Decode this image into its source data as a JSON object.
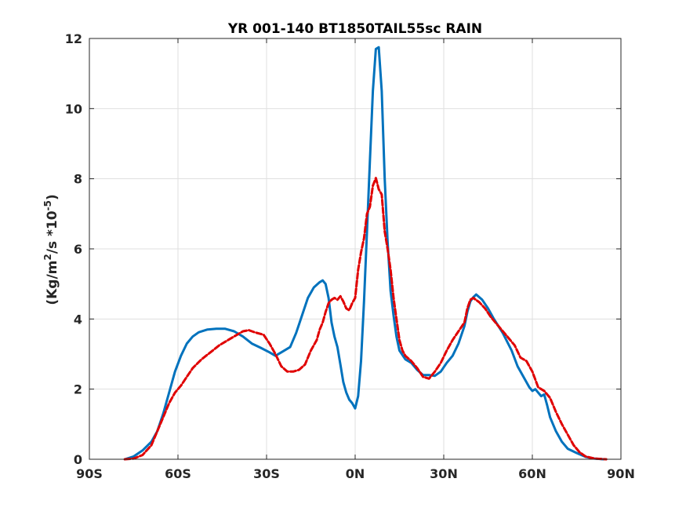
{
  "chart_data": {
    "type": "line",
    "title": "YR 001-140 BT1850TAIL55sc RAIN",
    "xlabel": "",
    "ylabel": {
      "main": "(Kg/m",
      "sup1": "2",
      "mid": "/s   *10",
      "sup2": "-5",
      "end": ")"
    },
    "xlim": [
      -90,
      90
    ],
    "ylim": [
      0,
      12
    ],
    "xticks": [
      -90,
      -60,
      -30,
      0,
      30,
      60,
      90
    ],
    "xtick_labels": [
      "90S",
      "60S",
      "30S",
      "0N",
      "30N",
      "60N",
      "90N"
    ],
    "yticks": [
      0,
      2,
      4,
      6,
      8,
      10,
      12
    ],
    "ytick_labels": [
      "0",
      "2",
      "4",
      "6",
      "8",
      "10",
      "12"
    ],
    "grid": true,
    "series": [
      {
        "color": "#0072BD",
        "style": "solid",
        "points": [
          [
            -78,
            0
          ],
          [
            -75,
            0.08
          ],
          [
            -72,
            0.25
          ],
          [
            -69,
            0.5
          ],
          [
            -67,
            0.8
          ],
          [
            -65,
            1.3
          ],
          [
            -63,
            1.9
          ],
          [
            -61,
            2.5
          ],
          [
            -59,
            2.95
          ],
          [
            -57,
            3.3
          ],
          [
            -55,
            3.5
          ],
          [
            -53,
            3.62
          ],
          [
            -50,
            3.7
          ],
          [
            -47,
            3.72
          ],
          [
            -44,
            3.72
          ],
          [
            -41,
            3.65
          ],
          [
            -38,
            3.5
          ],
          [
            -35,
            3.3
          ],
          [
            -32,
            3.18
          ],
          [
            -29,
            3.05
          ],
          [
            -27,
            2.95
          ],
          [
            -25,
            3.05
          ],
          [
            -22,
            3.2
          ],
          [
            -20,
            3.6
          ],
          [
            -18,
            4.1
          ],
          [
            -16,
            4.6
          ],
          [
            -14,
            4.9
          ],
          [
            -12,
            5.05
          ],
          [
            -11,
            5.1
          ],
          [
            -10,
            5.0
          ],
          [
            -9,
            4.6
          ],
          [
            -8,
            3.9
          ],
          [
            -7,
            3.5
          ],
          [
            -6,
            3.2
          ],
          [
            -5,
            2.7
          ],
          [
            -4,
            2.2
          ],
          [
            -3,
            1.9
          ],
          [
            -2,
            1.7
          ],
          [
            -1,
            1.6
          ],
          [
            0,
            1.45
          ],
          [
            1,
            1.8
          ],
          [
            2,
            2.8
          ],
          [
            3,
            4.5
          ],
          [
            4,
            6.5
          ],
          [
            5,
            8.5
          ],
          [
            6,
            10.5
          ],
          [
            7,
            11.7
          ],
          [
            8,
            11.75
          ],
          [
            9,
            10.5
          ],
          [
            10,
            8.0
          ],
          [
            11,
            6.2
          ],
          [
            12,
            4.8
          ],
          [
            13,
            4.1
          ],
          [
            14,
            3.5
          ],
          [
            15,
            3.1
          ],
          [
            17,
            2.85
          ],
          [
            19,
            2.75
          ],
          [
            21,
            2.55
          ],
          [
            23,
            2.4
          ],
          [
            25,
            2.4
          ],
          [
            27,
            2.38
          ],
          [
            29,
            2.5
          ],
          [
            31,
            2.75
          ],
          [
            33,
            2.95
          ],
          [
            35,
            3.3
          ],
          [
            37,
            3.8
          ],
          [
            38,
            4.2
          ],
          [
            39,
            4.5
          ],
          [
            40,
            4.62
          ],
          [
            41,
            4.7
          ],
          [
            43,
            4.55
          ],
          [
            45,
            4.3
          ],
          [
            47,
            4.0
          ],
          [
            50,
            3.6
          ],
          [
            53,
            3.1
          ],
          [
            55,
            2.65
          ],
          [
            57,
            2.35
          ],
          [
            59,
            2.05
          ],
          [
            60,
            1.95
          ],
          [
            61,
            2.0
          ],
          [
            62,
            1.9
          ],
          [
            63,
            1.8
          ],
          [
            64,
            1.85
          ],
          [
            65,
            1.55
          ],
          [
            66,
            1.2
          ],
          [
            68,
            0.8
          ],
          [
            70,
            0.5
          ],
          [
            72,
            0.3
          ],
          [
            75,
            0.18
          ],
          [
            78,
            0.07
          ],
          [
            81,
            0.02
          ],
          [
            84,
            0.0
          ]
        ]
      },
      {
        "color": "#E00000",
        "style": "dashed",
        "points": [
          [
            -78,
            0
          ],
          [
            -75,
            0.02
          ],
          [
            -72,
            0.12
          ],
          [
            -69,
            0.4
          ],
          [
            -67,
            0.8
          ],
          [
            -65,
            1.2
          ],
          [
            -63,
            1.6
          ],
          [
            -61,
            1.9
          ],
          [
            -59,
            2.1
          ],
          [
            -57,
            2.35
          ],
          [
            -55,
            2.6
          ],
          [
            -52,
            2.85
          ],
          [
            -49,
            3.05
          ],
          [
            -46,
            3.25
          ],
          [
            -43,
            3.4
          ],
          [
            -40,
            3.55
          ],
          [
            -38,
            3.65
          ],
          [
            -36,
            3.68
          ],
          [
            -34,
            3.62
          ],
          [
            -31,
            3.55
          ],
          [
            -29,
            3.3
          ],
          [
            -27,
            3.0
          ],
          [
            -25,
            2.65
          ],
          [
            -23,
            2.5
          ],
          [
            -21,
            2.5
          ],
          [
            -19,
            2.55
          ],
          [
            -17,
            2.7
          ],
          [
            -15,
            3.1
          ],
          [
            -13,
            3.4
          ],
          [
            -12,
            3.7
          ],
          [
            -11,
            3.9
          ],
          [
            -10,
            4.2
          ],
          [
            -9,
            4.45
          ],
          [
            -8,
            4.55
          ],
          [
            -7,
            4.6
          ],
          [
            -6,
            4.55
          ],
          [
            -5,
            4.65
          ],
          [
            -4,
            4.5
          ],
          [
            -3,
            4.3
          ],
          [
            -2,
            4.25
          ],
          [
            -1,
            4.45
          ],
          [
            0,
            4.6
          ],
          [
            1,
            5.4
          ],
          [
            2,
            5.9
          ],
          [
            3,
            6.3
          ],
          [
            4,
            7.0
          ],
          [
            5,
            7.2
          ],
          [
            6,
            7.8
          ],
          [
            7,
            8.02
          ],
          [
            8,
            7.7
          ],
          [
            9,
            7.55
          ],
          [
            10,
            6.5
          ],
          [
            11,
            6.0
          ],
          [
            12,
            5.4
          ],
          [
            13,
            4.6
          ],
          [
            14,
            4.0
          ],
          [
            15,
            3.4
          ],
          [
            16,
            3.1
          ],
          [
            17,
            2.95
          ],
          [
            19,
            2.8
          ],
          [
            21,
            2.6
          ],
          [
            23,
            2.35
          ],
          [
            25,
            2.3
          ],
          [
            27,
            2.5
          ],
          [
            29,
            2.75
          ],
          [
            31,
            3.1
          ],
          [
            33,
            3.4
          ],
          [
            35,
            3.65
          ],
          [
            37,
            3.9
          ],
          [
            38,
            4.3
          ],
          [
            39,
            4.55
          ],
          [
            40,
            4.6
          ],
          [
            42,
            4.48
          ],
          [
            44,
            4.3
          ],
          [
            46,
            4.05
          ],
          [
            48,
            3.85
          ],
          [
            51,
            3.55
          ],
          [
            54,
            3.25
          ],
          [
            56,
            2.9
          ],
          [
            58,
            2.8
          ],
          [
            60,
            2.5
          ],
          [
            62,
            2.05
          ],
          [
            64,
            1.95
          ],
          [
            66,
            1.75
          ],
          [
            68,
            1.35
          ],
          [
            70,
            1.0
          ],
          [
            72,
            0.7
          ],
          [
            74,
            0.4
          ],
          [
            76,
            0.2
          ],
          [
            78,
            0.08
          ],
          [
            81,
            0.02
          ],
          [
            85,
            0
          ]
        ]
      }
    ]
  }
}
